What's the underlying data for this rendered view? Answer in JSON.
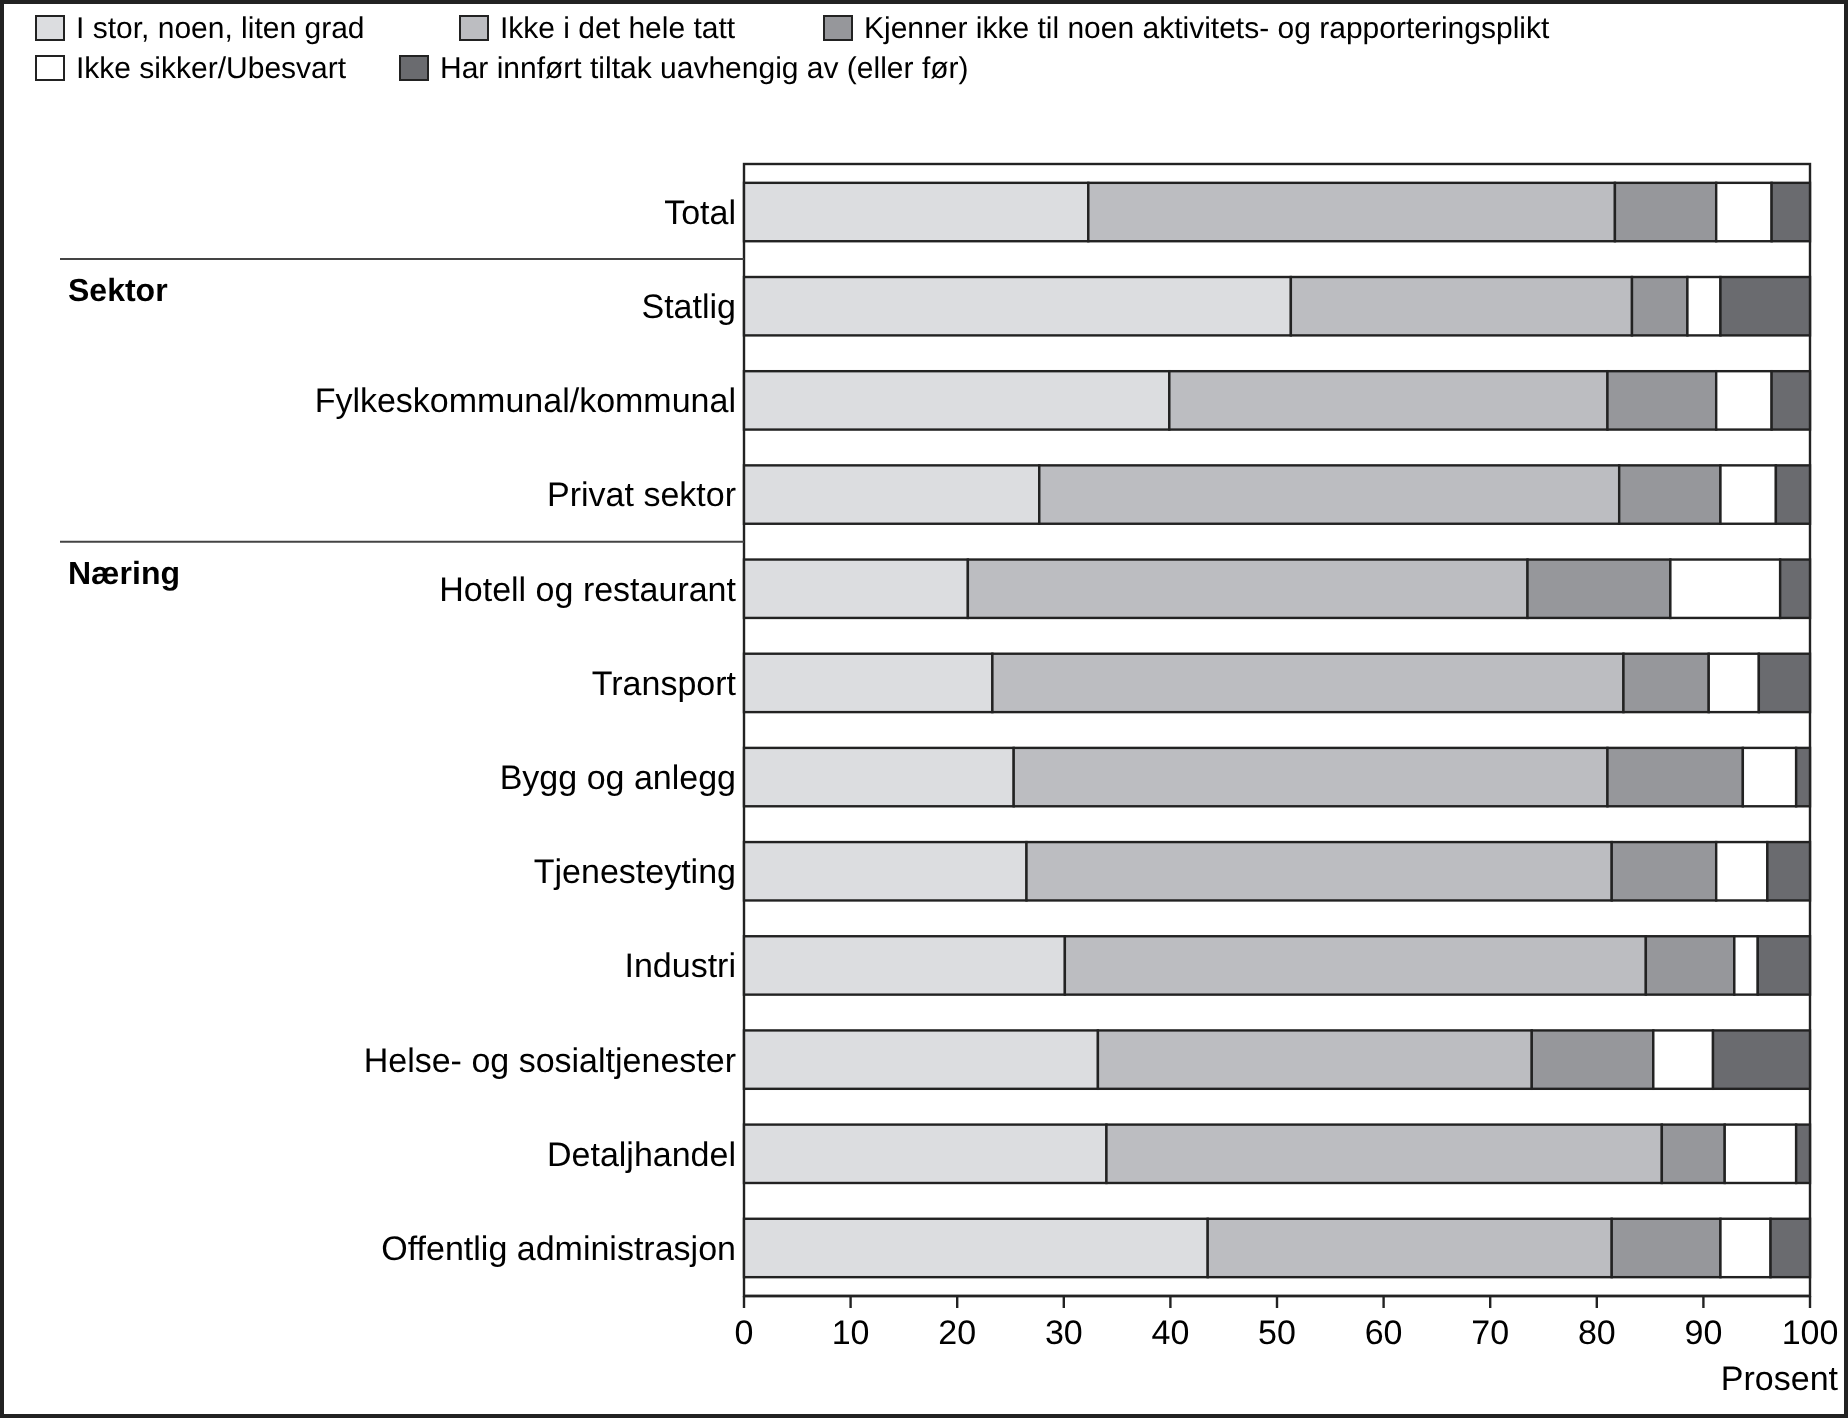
{
  "chart_data": {
    "type": "bar",
    "orientation": "horizontal",
    "stacked": true,
    "xlabel": "Prosent",
    "legend": "top",
    "categories": [
      "Total",
      "Statlig",
      "Fylkeskommunal/kommunal",
      "Privat sektor",
      "Hotell og restaurant",
      "Transport",
      "Bygg og anlegg",
      "Tjenesteyting",
      "Industri",
      "Helse- og sosialtjenester",
      "Detaljhandel",
      "Offentlig administrasjon"
    ],
    "series": [
      {
        "name": "I stor, noen, liten grad",
        "color": "#dcdde0",
        "values": [
          32.3,
          51.3,
          39.9,
          27.7,
          21.0,
          23.3,
          25.3,
          26.5,
          30.1,
          33.2,
          34.0,
          43.5
        ]
      },
      {
        "name": "Ikke i det hele tatt",
        "color": "#bcbdc1",
        "values": [
          49.4,
          32.0,
          41.1,
          54.4,
          52.5,
          59.2,
          55.7,
          54.9,
          54.5,
          40.7,
          52.1,
          37.9
        ]
      },
      {
        "name": "Kjenner ikke til noen aktivitets- og rapporteringsplikt",
        "color": "#96979b",
        "values": [
          9.5,
          5.2,
          10.2,
          9.5,
          13.4,
          8.0,
          12.7,
          9.8,
          8.3,
          11.4,
          5.9,
          10.2
        ]
      },
      {
        "name": "Ikke sikker/Ubesvart",
        "color": "#ffffff",
        "values": [
          5.2,
          3.1,
          5.2,
          5.2,
          10.3,
          4.7,
          5.0,
          4.8,
          2.2,
          5.6,
          6.7,
          4.7
        ]
      },
      {
        "name": "Har innført tiltak uavhengig av (eller før)",
        "color": "#6a6b6f",
        "values": [
          3.6,
          8.4,
          3.6,
          3.2,
          2.8,
          4.8,
          1.3,
          4.0,
          4.9,
          9.1,
          1.3,
          3.7
        ]
      }
    ],
    "xlim": [
      0,
      100
    ],
    "xticks": [
      0,
      10,
      20,
      30,
      40,
      50,
      60,
      70,
      80,
      90,
      100
    ],
    "annotations": [
      "Sektor",
      "Næring"
    ]
  }
}
